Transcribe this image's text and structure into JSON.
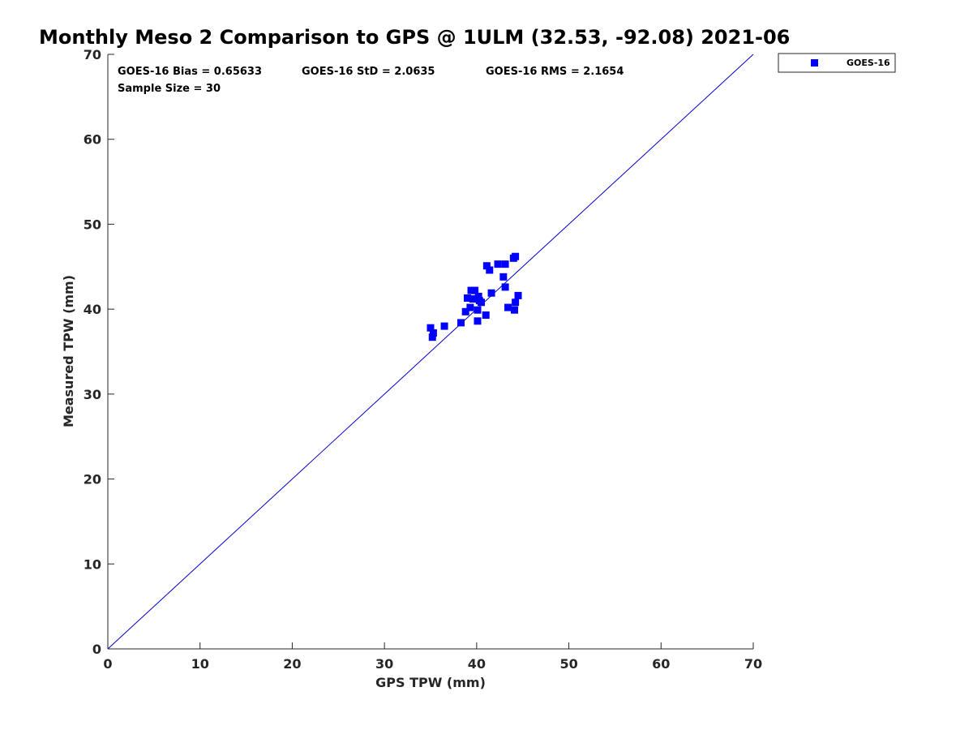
{
  "chart_data": {
    "type": "scatter",
    "title": "Monthly Meso 2 Comparison to GPS @ 1ULM (32.53, -92.08) 2021-06",
    "xlabel": "GPS TPW (mm)",
    "ylabel": "Measured TPW (mm)",
    "xlim": [
      0,
      70
    ],
    "ylim": [
      0,
      70
    ],
    "xticks": [
      0,
      10,
      20,
      30,
      40,
      50,
      60,
      70
    ],
    "yticks": [
      0,
      10,
      20,
      30,
      40,
      50,
      60,
      70
    ],
    "grid": false,
    "legend_position": "top-right, outside plot",
    "reference_line": {
      "from": [
        0,
        0
      ],
      "to": [
        70,
        70
      ],
      "color": "#0000cc"
    },
    "annotations": {
      "bias": "GOES-16 Bias = 0.65633",
      "std": "GOES-16 StD = 2.0635",
      "rms": "GOES-16 RMS = 2.1654",
      "sample": "Sample Size = 30"
    },
    "series": [
      {
        "name": "GOES-16",
        "color": "#0000ff",
        "marker": "square",
        "points": [
          [
            35.0,
            37.8
          ],
          [
            35.2,
            36.7
          ],
          [
            35.3,
            37.2
          ],
          [
            36.5,
            38.0
          ],
          [
            38.3,
            38.4
          ],
          [
            38.8,
            39.7
          ],
          [
            39.0,
            41.3
          ],
          [
            39.3,
            40.2
          ],
          [
            39.4,
            42.2
          ],
          [
            39.6,
            41.2
          ],
          [
            39.8,
            42.2
          ],
          [
            40.1,
            38.6
          ],
          [
            40.1,
            39.9
          ],
          [
            40.2,
            41.5
          ],
          [
            40.5,
            40.8
          ],
          [
            40.3,
            41.0
          ],
          [
            41.0,
            39.3
          ],
          [
            41.1,
            45.1
          ],
          [
            41.4,
            44.6
          ],
          [
            41.6,
            41.9
          ],
          [
            42.3,
            45.3
          ],
          [
            42.9,
            43.8
          ],
          [
            43.1,
            45.3
          ],
          [
            43.1,
            42.6
          ],
          [
            43.4,
            40.2
          ],
          [
            44.0,
            46.0
          ],
          [
            44.2,
            46.2
          ],
          [
            44.1,
            39.9
          ],
          [
            44.2,
            40.8
          ],
          [
            44.5,
            41.6
          ]
        ]
      }
    ]
  }
}
